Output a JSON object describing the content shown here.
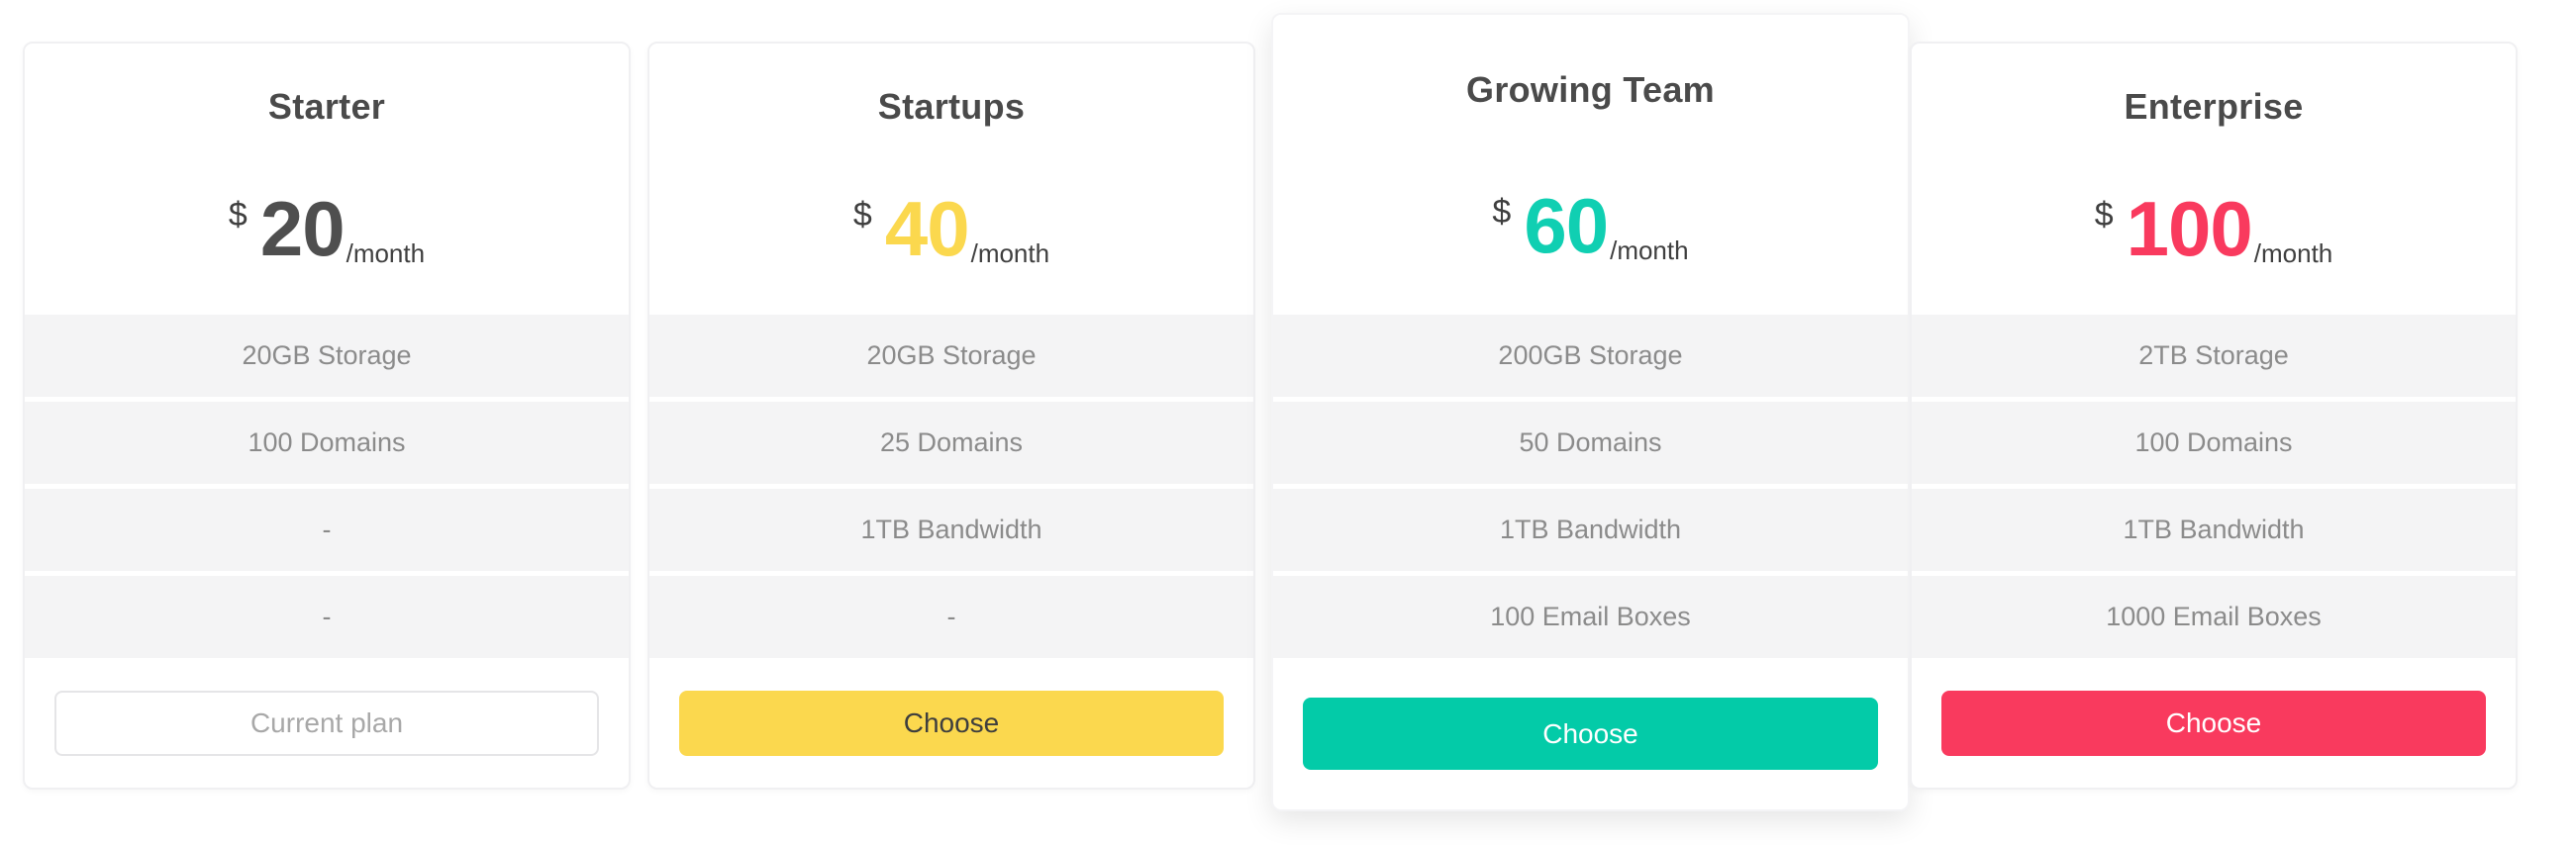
{
  "theme": {
    "page_bg": "#ffffff",
    "card_border": "#f0f0f2",
    "feature_row_bg": "#f4f4f5",
    "title_color": "#4a4a4a",
    "feature_text_color": "#8b8b8b",
    "dark_text": "#3f3f3f"
  },
  "plans": [
    {
      "name": "Starter",
      "currency": "$",
      "amount": "20",
      "period": "/month",
      "accent": "#4f4f4f",
      "featured": false,
      "features": [
        "20GB Storage",
        "100 Domains",
        "-",
        "-"
      ],
      "button": {
        "label": "Current plan",
        "variant": "outline",
        "bg": "#ffffff",
        "text_color": "#a8a8a8",
        "border_color": "#e5e5e7"
      }
    },
    {
      "name": "Startups",
      "currency": "$",
      "amount": "40",
      "period": "/month",
      "accent": "#fbd84e",
      "featured": false,
      "features": [
        "20GB Storage",
        "25 Domains",
        "1TB Bandwidth",
        "-"
      ],
      "button": {
        "label": "Choose",
        "variant": "solid",
        "bg": "#fbd84e",
        "text_color": "#3e3e3e",
        "border_color": ""
      }
    },
    {
      "name": "Growing Team",
      "currency": "$",
      "amount": "60",
      "period": "/month",
      "accent": "#10cfb2",
      "featured": true,
      "features": [
        "200GB Storage",
        "50 Domains",
        "1TB Bandwidth",
        "100 Email Boxes"
      ],
      "button": {
        "label": "Choose",
        "variant": "solid",
        "bg": "#03cba8",
        "text_color": "#ffffff",
        "border_color": ""
      }
    },
    {
      "name": "Enterprise",
      "currency": "$",
      "amount": "100",
      "period": "/month",
      "accent": "#f93a5e",
      "featured": false,
      "features": [
        "2TB Storage",
        "100 Domains",
        "1TB Bandwidth",
        "1000 Email Boxes"
      ],
      "button": {
        "label": "Choose",
        "variant": "solid",
        "bg": "#f93a5e",
        "text_color": "#ffffff",
        "border_color": ""
      }
    }
  ]
}
